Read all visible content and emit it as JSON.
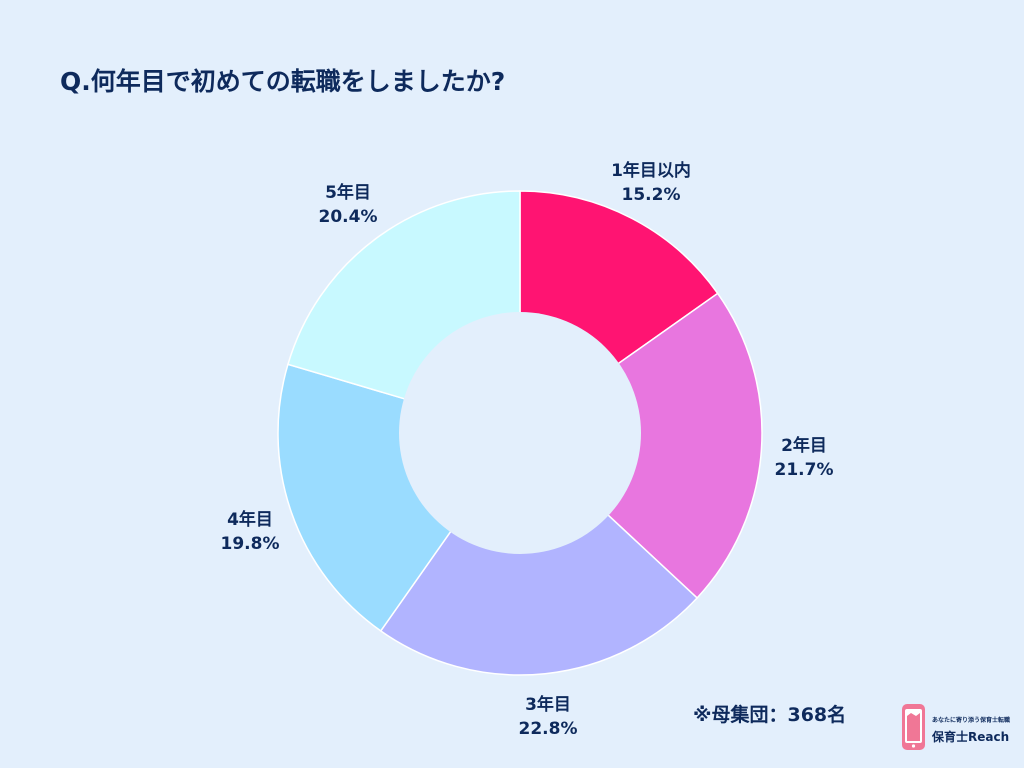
{
  "colors": {
    "background": "#E3EFFC",
    "text": "#0E2A5C",
    "slice_border": "#FFFFFF",
    "hole": "#E3EFFC",
    "logo_pink": "#F07796"
  },
  "chart_data": {
    "type": "pie",
    "style": "donut",
    "title": "Q.何年目で初めての転職をしましたか?",
    "slices": [
      {
        "label": "1年目以内",
        "value": 15.2,
        "value_label": "15.2%",
        "color": "#FF1472"
      },
      {
        "label": "2年目",
        "value": 21.7,
        "value_label": "21.7%",
        "color": "#E876DF"
      },
      {
        "label": "3年目",
        "value": 22.8,
        "value_label": "22.8%",
        "color": "#B1B4FF"
      },
      {
        "label": "4年目",
        "value": 19.8,
        "value_label": "19.8%",
        "color": "#9ADCFF"
      },
      {
        "label": "5年目",
        "value": 20.4,
        "value_label": "20.4%",
        "color": "#C8F9FF"
      }
    ],
    "start_angle": "12 o'clock",
    "direction": "clockwise",
    "legend": "none"
  },
  "footnote": {
    "sample": "※母集団：368名"
  },
  "logo": {
    "icon": "phone-apron-icon",
    "tagline": "あなたに寄り添う保育士転職",
    "name": "保育士Reach"
  }
}
